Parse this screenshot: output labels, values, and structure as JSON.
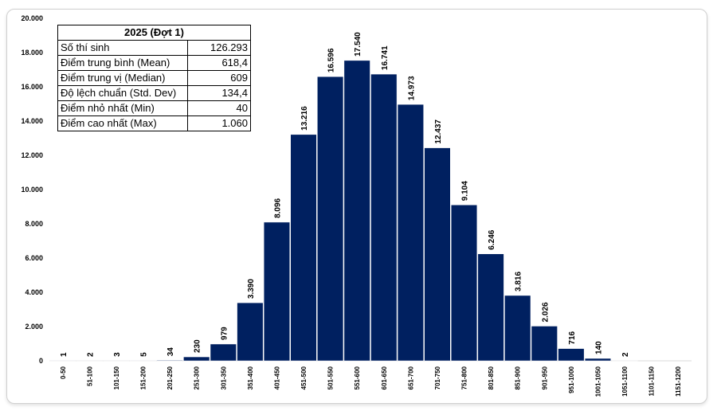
{
  "stats_table": {
    "title": "2025 (Đợt 1)",
    "rows": [
      {
        "label": "Số thí sinh",
        "value": "126.293"
      },
      {
        "label": "Điểm trung bình (Mean)",
        "value": "618,4"
      },
      {
        "label": "Điểm trung vị (Median)",
        "value": "609"
      },
      {
        "label": "Độ lệch chuẩn (Std. Dev)",
        "value": "134,4"
      },
      {
        "label": "Điểm nhỏ nhất (Min)",
        "value": "40"
      },
      {
        "label": "Điểm cao nhất (Max)",
        "value": "1.060"
      }
    ]
  },
  "chart_data": {
    "type": "bar",
    "title": "",
    "xlabel": "",
    "ylabel": "",
    "ylim": [
      0,
      20000
    ],
    "yticks": [
      0,
      2000,
      4000,
      6000,
      8000,
      10000,
      12000,
      14000,
      16000,
      18000,
      20000
    ],
    "ytick_labels": [
      "0",
      "2.000",
      "4.000",
      "6.000",
      "8.000",
      "10.000",
      "12.000",
      "14.000",
      "16.000",
      "18.000",
      "20.000"
    ],
    "grid": false,
    "bar_color": "#002060",
    "categories": [
      "0-50",
      "51-100",
      "101-150",
      "151-200",
      "201-250",
      "251-300",
      "301-350",
      "351-400",
      "401-450",
      "451-500",
      "501-550",
      "551-600",
      "601-650",
      "651-700",
      "701-750",
      "751-800",
      "801-850",
      "851-900",
      "901-950",
      "951-1000",
      "1001-1050",
      "1051-1100",
      "1101-1150",
      "1151-1200"
    ],
    "values": [
      1,
      2,
      3,
      5,
      34,
      230,
      979,
      3390,
      8096,
      13216,
      16596,
      17540,
      16741,
      14973,
      12437,
      9104,
      6246,
      3816,
      2026,
      716,
      140,
      2,
      0,
      0
    ],
    "data_labels": [
      "1",
      "2",
      "3",
      "5",
      "34",
      "230",
      "979",
      "3.390",
      "8.096",
      "13.216",
      "16.596",
      "17.540",
      "16.741",
      "14.973",
      "12.437",
      "9.104",
      "6.246",
      "3.816",
      "2.026",
      "716",
      "140",
      "2",
      "",
      ""
    ]
  }
}
